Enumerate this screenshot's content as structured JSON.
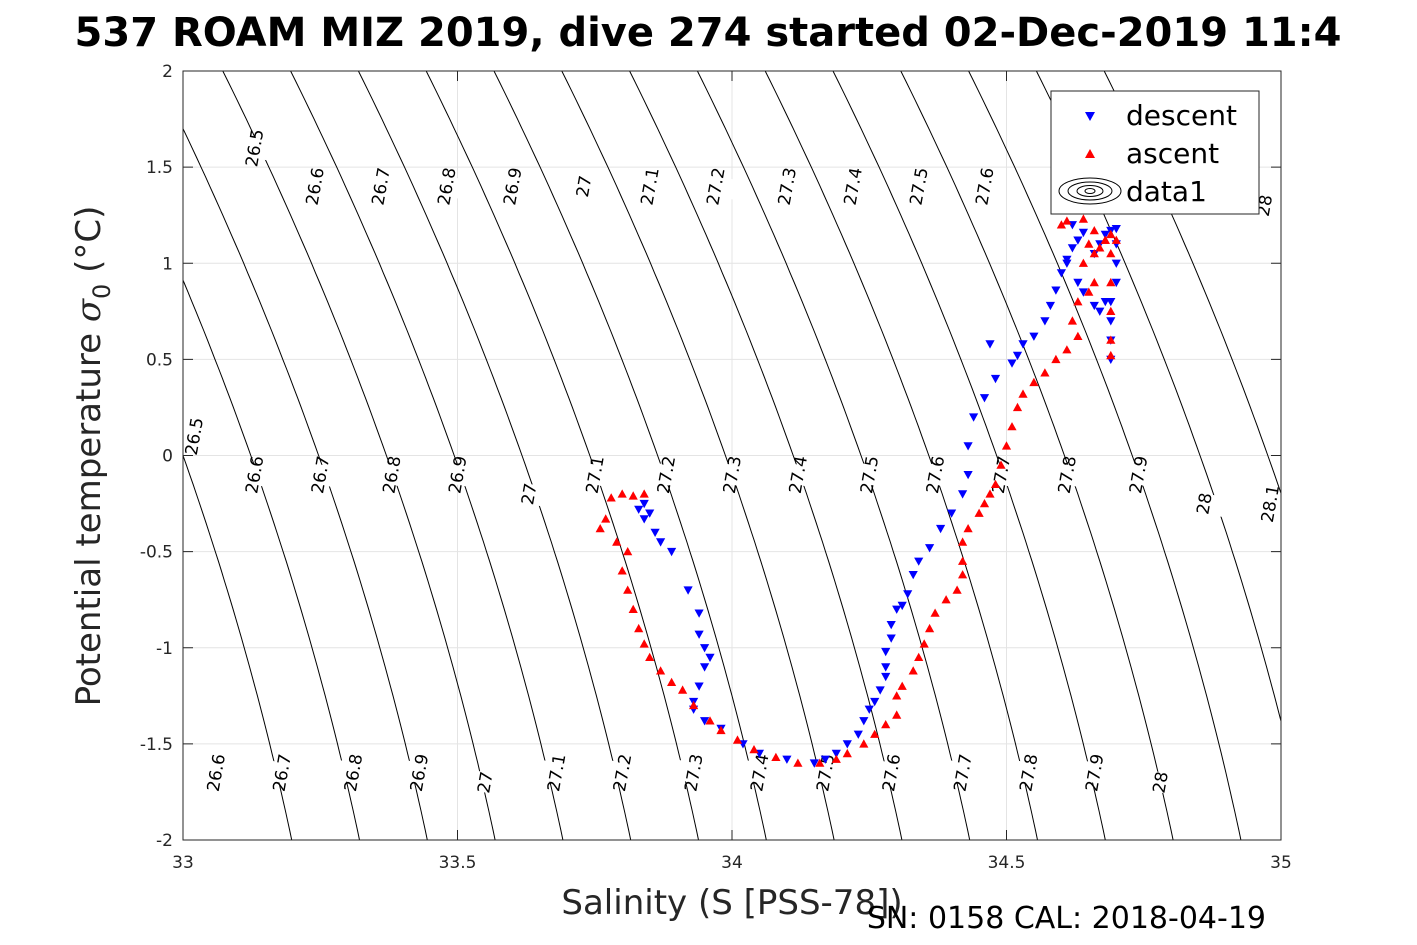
{
  "chart_data": {
    "type": "scatter",
    "title": "537 ROAM MIZ 2019, dive 274 started 02-Dec-2019 11:4",
    "xlabel": "Salinity (S [PSS-78])",
    "ylabel_main": "Potential temperature ",
    "ylabel_symbol": "σ",
    "ylabel_sub": "0",
    "ylabel_unit": " (°C)",
    "footer": "SN: 0158  CAL: 2018-04-19",
    "xlim": [
      33,
      35
    ],
    "ylim": [
      -2,
      2
    ],
    "xticks": [
      "33",
      "33.5",
      "34",
      "34.5",
      "35"
    ],
    "yticks": [
      "-2",
      "-1.5",
      "-1",
      "-0.5",
      "0",
      "0.5",
      "1",
      "1.5",
      "2"
    ],
    "grid": true,
    "legend_position": "top-right",
    "legend": [
      {
        "key": "descent",
        "label": "descent",
        "marker": "triangle-down",
        "color": "#0000ff"
      },
      {
        "key": "ascent",
        "label": "ascent",
        "marker": "triangle-up",
        "color": "#ff0000"
      },
      {
        "key": "data1",
        "label": "data1",
        "marker": "contour"
      }
    ],
    "density_contours": [
      26.5,
      26.6,
      26.7,
      26.8,
      26.9,
      27.0,
      27.1,
      27.2,
      27.3,
      27.4,
      27.5,
      27.6,
      27.7,
      27.8,
      27.9,
      28.0,
      28.1
    ],
    "contour_labels": [
      {
        "text": "26.5",
        "s": 33.13,
        "t": 1.6
      },
      {
        "text": "26.6",
        "s": 33.24,
        "t": 1.4
      },
      {
        "text": "26.7",
        "s": 33.36,
        "t": 1.4
      },
      {
        "text": "26.8",
        "s": 33.48,
        "t": 1.4
      },
      {
        "text": "26.9",
        "s": 33.6,
        "t": 1.4
      },
      {
        "text": "27",
        "s": 33.73,
        "t": 1.4
      },
      {
        "text": "27.1",
        "s": 33.85,
        "t": 1.4
      },
      {
        "text": "27.2",
        "s": 33.97,
        "t": 1.4
      },
      {
        "text": "27.3",
        "s": 34.1,
        "t": 1.4
      },
      {
        "text": "27.4",
        "s": 34.22,
        "t": 1.4
      },
      {
        "text": "27.5",
        "s": 34.34,
        "t": 1.4
      },
      {
        "text": "27.6",
        "s": 34.46,
        "t": 1.4
      },
      {
        "text": "28",
        "s": 34.97,
        "t": 1.3
      },
      {
        "text": "26.5",
        "s": 33.02,
        "t": 0.1
      },
      {
        "text": "26.6",
        "s": 33.13,
        "t": -0.1
      },
      {
        "text": "26.7",
        "s": 33.25,
        "t": -0.1
      },
      {
        "text": "26.8",
        "s": 33.38,
        "t": -0.1
      },
      {
        "text": "26.9",
        "s": 33.5,
        "t": -0.1
      },
      {
        "text": "27",
        "s": 33.63,
        "t": -0.2
      },
      {
        "text": "27.1",
        "s": 33.75,
        "t": -0.1
      },
      {
        "text": "27.2",
        "s": 33.88,
        "t": -0.1
      },
      {
        "text": "27.3",
        "s": 34.0,
        "t": -0.1
      },
      {
        "text": "27.4",
        "s": 34.12,
        "t": -0.1
      },
      {
        "text": "27.5",
        "s": 34.25,
        "t": -0.1
      },
      {
        "text": "27.6",
        "s": 34.37,
        "t": -0.1
      },
      {
        "text": "27.7",
        "s": 34.49,
        "t": -0.1
      },
      {
        "text": "27.8",
        "s": 34.61,
        "t": -0.1
      },
      {
        "text": "27.9",
        "s": 34.74,
        "t": -0.1
      },
      {
        "text": "28",
        "s": 34.86,
        "t": -0.25
      },
      {
        "text": "28.1",
        "s": 34.98,
        "t": -0.25
      },
      {
        "text": "26.6",
        "s": 33.06,
        "t": -1.65
      },
      {
        "text": "26.7",
        "s": 33.18,
        "t": -1.65
      },
      {
        "text": "26.8",
        "s": 33.31,
        "t": -1.65
      },
      {
        "text": "26.9",
        "s": 33.43,
        "t": -1.65
      },
      {
        "text": "27",
        "s": 33.55,
        "t": -1.7
      },
      {
        "text": "27.1",
        "s": 33.68,
        "t": -1.65
      },
      {
        "text": "27.2",
        "s": 33.8,
        "t": -1.65
      },
      {
        "text": "27.3",
        "s": 33.93,
        "t": -1.65
      },
      {
        "text": "27.4",
        "s": 34.05,
        "t": -1.65
      },
      {
        "text": "27.5",
        "s": 34.17,
        "t": -1.65
      },
      {
        "text": "27.6",
        "s": 34.29,
        "t": -1.65
      },
      {
        "text": "27.7",
        "s": 34.42,
        "t": -1.65
      },
      {
        "text": "27.8",
        "s": 34.54,
        "t": -1.65
      },
      {
        "text": "27.9",
        "s": 34.66,
        "t": -1.65
      },
      {
        "text": "28",
        "s": 34.78,
        "t": -1.7
      }
    ],
    "series": [
      {
        "name": "descent",
        "marker": "triangle-down",
        "color": "#0000ff",
        "points": [
          [
            33.84,
            -0.25
          ],
          [
            33.83,
            -0.28
          ],
          [
            33.85,
            -0.3
          ],
          [
            33.84,
            -0.33
          ],
          [
            33.86,
            -0.4
          ],
          [
            33.87,
            -0.45
          ],
          [
            33.89,
            -0.5
          ],
          [
            33.92,
            -0.7
          ],
          [
            33.94,
            -0.82
          ],
          [
            33.94,
            -0.93
          ],
          [
            33.95,
            -1.0
          ],
          [
            33.96,
            -1.05
          ],
          [
            33.95,
            -1.1
          ],
          [
            33.94,
            -1.2
          ],
          [
            33.93,
            -1.28
          ],
          [
            33.93,
            -1.32
          ],
          [
            33.95,
            -1.38
          ],
          [
            33.98,
            -1.42
          ],
          [
            34.02,
            -1.5
          ],
          [
            34.05,
            -1.55
          ],
          [
            34.1,
            -1.58
          ],
          [
            34.15,
            -1.6
          ],
          [
            34.17,
            -1.58
          ],
          [
            34.19,
            -1.55
          ],
          [
            34.21,
            -1.5
          ],
          [
            34.23,
            -1.45
          ],
          [
            34.24,
            -1.38
          ],
          [
            34.25,
            -1.32
          ],
          [
            34.26,
            -1.28
          ],
          [
            34.27,
            -1.22
          ],
          [
            34.28,
            -1.15
          ],
          [
            34.28,
            -1.1
          ],
          [
            34.28,
            -1.02
          ],
          [
            34.29,
            -0.95
          ],
          [
            34.29,
            -0.88
          ],
          [
            34.3,
            -0.8
          ],
          [
            34.31,
            -0.78
          ],
          [
            34.32,
            -0.72
          ],
          [
            34.33,
            -0.62
          ],
          [
            34.34,
            -0.55
          ],
          [
            34.36,
            -0.48
          ],
          [
            34.38,
            -0.38
          ],
          [
            34.4,
            -0.3
          ],
          [
            34.42,
            -0.2
          ],
          [
            34.43,
            -0.1
          ],
          [
            34.43,
            0.05
          ],
          [
            34.44,
            0.2
          ],
          [
            34.46,
            0.3
          ],
          [
            34.48,
            0.4
          ],
          [
            34.51,
            0.48
          ],
          [
            34.47,
            0.58
          ],
          [
            34.52,
            0.52
          ],
          [
            34.53,
            0.58
          ],
          [
            34.55,
            0.62
          ],
          [
            34.57,
            0.7
          ],
          [
            34.58,
            0.78
          ],
          [
            34.59,
            0.86
          ],
          [
            34.6,
            0.95
          ],
          [
            34.61,
            1.02
          ],
          [
            34.62,
            1.08
          ],
          [
            34.63,
            1.12
          ],
          [
            34.64,
            1.16
          ],
          [
            34.62,
            1.2
          ],
          [
            34.61,
            1.0
          ],
          [
            34.63,
            0.9
          ],
          [
            34.64,
            0.85
          ],
          [
            34.66,
            0.78
          ],
          [
            34.67,
            0.75
          ],
          [
            34.68,
            0.8
          ],
          [
            34.66,
            1.05
          ],
          [
            34.67,
            1.1
          ],
          [
            34.68,
            1.15
          ],
          [
            34.69,
            1.17
          ],
          [
            34.7,
            1.18
          ],
          [
            34.7,
            1.1
          ],
          [
            34.7,
            1.0
          ],
          [
            34.7,
            0.9
          ],
          [
            34.69,
            0.8
          ],
          [
            34.69,
            0.7
          ],
          [
            34.69,
            0.6
          ],
          [
            34.69,
            0.5
          ]
        ]
      },
      {
        "name": "ascent",
        "marker": "triangle-up",
        "color": "#ff0000",
        "points": [
          [
            33.78,
            -0.22
          ],
          [
            33.8,
            -0.2
          ],
          [
            33.82,
            -0.21
          ],
          [
            33.84,
            -0.2
          ],
          [
            33.77,
            -0.33
          ],
          [
            33.76,
            -0.38
          ],
          [
            33.79,
            -0.45
          ],
          [
            33.81,
            -0.5
          ],
          [
            33.8,
            -0.6
          ],
          [
            33.81,
            -0.7
          ],
          [
            33.82,
            -0.8
          ],
          [
            33.83,
            -0.9
          ],
          [
            33.84,
            -0.98
          ],
          [
            33.85,
            -1.05
          ],
          [
            33.87,
            -1.12
          ],
          [
            33.89,
            -1.18
          ],
          [
            33.91,
            -1.22
          ],
          [
            33.93,
            -1.3
          ],
          [
            33.96,
            -1.38
          ],
          [
            33.98,
            -1.43
          ],
          [
            34.01,
            -1.48
          ],
          [
            34.04,
            -1.53
          ],
          [
            34.08,
            -1.57
          ],
          [
            34.12,
            -1.6
          ],
          [
            34.16,
            -1.6
          ],
          [
            34.19,
            -1.58
          ],
          [
            34.21,
            -1.55
          ],
          [
            34.24,
            -1.5
          ],
          [
            34.26,
            -1.45
          ],
          [
            34.28,
            -1.4
          ],
          [
            34.3,
            -1.35
          ],
          [
            34.3,
            -1.25
          ],
          [
            34.31,
            -1.2
          ],
          [
            34.33,
            -1.12
          ],
          [
            34.34,
            -1.05
          ],
          [
            34.35,
            -0.98
          ],
          [
            34.36,
            -0.9
          ],
          [
            34.37,
            -0.82
          ],
          [
            34.39,
            -0.75
          ],
          [
            34.41,
            -0.7
          ],
          [
            34.42,
            -0.62
          ],
          [
            34.42,
            -0.55
          ],
          [
            34.42,
            -0.45
          ],
          [
            34.43,
            -0.38
          ],
          [
            34.45,
            -0.3
          ],
          [
            34.46,
            -0.25
          ],
          [
            34.47,
            -0.2
          ],
          [
            34.48,
            -0.15
          ],
          [
            34.49,
            -0.05
          ],
          [
            34.5,
            0.05
          ],
          [
            34.51,
            0.15
          ],
          [
            34.52,
            0.25
          ],
          [
            34.53,
            0.32
          ],
          [
            34.55,
            0.38
          ],
          [
            34.57,
            0.43
          ],
          [
            34.59,
            0.5
          ],
          [
            34.61,
            0.55
          ],
          [
            34.63,
            0.62
          ],
          [
            34.62,
            0.7
          ],
          [
            34.63,
            0.8
          ],
          [
            34.65,
            0.85
          ],
          [
            34.66,
            0.9
          ],
          [
            34.64,
            1.0
          ],
          [
            34.65,
            1.1
          ],
          [
            34.66,
            1.05
          ],
          [
            34.67,
            1.08
          ],
          [
            34.68,
            1.12
          ],
          [
            34.69,
            1.15
          ],
          [
            34.61,
            1.22
          ],
          [
            34.6,
            1.2
          ],
          [
            34.64,
            1.23
          ],
          [
            34.66,
            1.17
          ],
          [
            34.68,
            1.12
          ],
          [
            34.69,
            1.05
          ],
          [
            34.69,
            0.9
          ],
          [
            34.69,
            0.75
          ],
          [
            34.69,
            0.6
          ],
          [
            34.69,
            0.52
          ],
          [
            34.7,
            1.12
          ]
        ]
      }
    ]
  }
}
